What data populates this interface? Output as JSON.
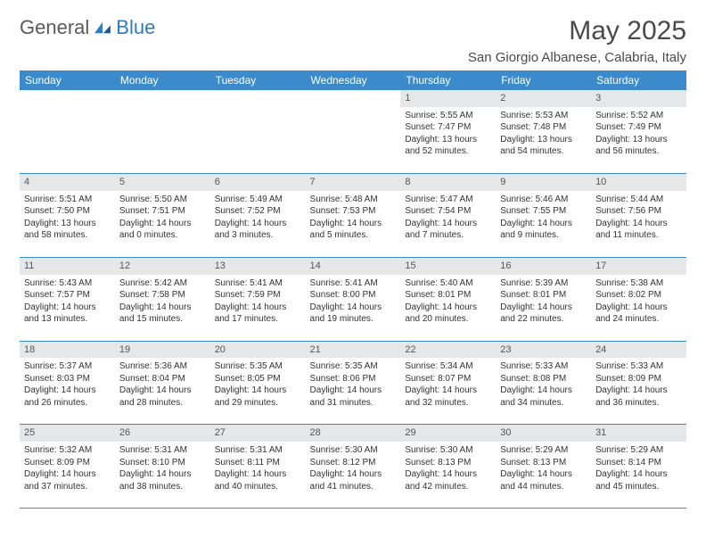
{
  "brand": {
    "name1": "General",
    "name2": "Blue",
    "logo_color": "#2d7bc0",
    "text_color": "#5a5a5a"
  },
  "title": "May 2025",
  "location": "San Giorgio Albanese, Calabria, Italy",
  "header_bg": "#3b8bcc",
  "header_text_color": "#ffffff",
  "daynum_bg": "#e5e7e9",
  "weekdays": [
    "Sunday",
    "Monday",
    "Tuesday",
    "Wednesday",
    "Thursday",
    "Friday",
    "Saturday"
  ],
  "weeks": [
    [
      null,
      null,
      null,
      null,
      {
        "d": "1",
        "r": "5:55 AM",
        "s": "7:47 PM",
        "dl": "13 hours and 52 minutes."
      },
      {
        "d": "2",
        "r": "5:53 AM",
        "s": "7:48 PM",
        "dl": "13 hours and 54 minutes."
      },
      {
        "d": "3",
        "r": "5:52 AM",
        "s": "7:49 PM",
        "dl": "13 hours and 56 minutes."
      }
    ],
    [
      {
        "d": "4",
        "r": "5:51 AM",
        "s": "7:50 PM",
        "dl": "13 hours and 58 minutes."
      },
      {
        "d": "5",
        "r": "5:50 AM",
        "s": "7:51 PM",
        "dl": "14 hours and 0 minutes."
      },
      {
        "d": "6",
        "r": "5:49 AM",
        "s": "7:52 PM",
        "dl": "14 hours and 3 minutes."
      },
      {
        "d": "7",
        "r": "5:48 AM",
        "s": "7:53 PM",
        "dl": "14 hours and 5 minutes."
      },
      {
        "d": "8",
        "r": "5:47 AM",
        "s": "7:54 PM",
        "dl": "14 hours and 7 minutes."
      },
      {
        "d": "9",
        "r": "5:46 AM",
        "s": "7:55 PM",
        "dl": "14 hours and 9 minutes."
      },
      {
        "d": "10",
        "r": "5:44 AM",
        "s": "7:56 PM",
        "dl": "14 hours and 11 minutes."
      }
    ],
    [
      {
        "d": "11",
        "r": "5:43 AM",
        "s": "7:57 PM",
        "dl": "14 hours and 13 minutes."
      },
      {
        "d": "12",
        "r": "5:42 AM",
        "s": "7:58 PM",
        "dl": "14 hours and 15 minutes."
      },
      {
        "d": "13",
        "r": "5:41 AM",
        "s": "7:59 PM",
        "dl": "14 hours and 17 minutes."
      },
      {
        "d": "14",
        "r": "5:41 AM",
        "s": "8:00 PM",
        "dl": "14 hours and 19 minutes."
      },
      {
        "d": "15",
        "r": "5:40 AM",
        "s": "8:01 PM",
        "dl": "14 hours and 20 minutes."
      },
      {
        "d": "16",
        "r": "5:39 AM",
        "s": "8:01 PM",
        "dl": "14 hours and 22 minutes."
      },
      {
        "d": "17",
        "r": "5:38 AM",
        "s": "8:02 PM",
        "dl": "14 hours and 24 minutes."
      }
    ],
    [
      {
        "d": "18",
        "r": "5:37 AM",
        "s": "8:03 PM",
        "dl": "14 hours and 26 minutes."
      },
      {
        "d": "19",
        "r": "5:36 AM",
        "s": "8:04 PM",
        "dl": "14 hours and 28 minutes."
      },
      {
        "d": "20",
        "r": "5:35 AM",
        "s": "8:05 PM",
        "dl": "14 hours and 29 minutes."
      },
      {
        "d": "21",
        "r": "5:35 AM",
        "s": "8:06 PM",
        "dl": "14 hours and 31 minutes."
      },
      {
        "d": "22",
        "r": "5:34 AM",
        "s": "8:07 PM",
        "dl": "14 hours and 32 minutes."
      },
      {
        "d": "23",
        "r": "5:33 AM",
        "s": "8:08 PM",
        "dl": "14 hours and 34 minutes."
      },
      {
        "d": "24",
        "r": "5:33 AM",
        "s": "8:09 PM",
        "dl": "14 hours and 36 minutes."
      }
    ],
    [
      {
        "d": "25",
        "r": "5:32 AM",
        "s": "8:09 PM",
        "dl": "14 hours and 37 minutes."
      },
      {
        "d": "26",
        "r": "5:31 AM",
        "s": "8:10 PM",
        "dl": "14 hours and 38 minutes."
      },
      {
        "d": "27",
        "r": "5:31 AM",
        "s": "8:11 PM",
        "dl": "14 hours and 40 minutes."
      },
      {
        "d": "28",
        "r": "5:30 AM",
        "s": "8:12 PM",
        "dl": "14 hours and 41 minutes."
      },
      {
        "d": "29",
        "r": "5:30 AM",
        "s": "8:13 PM",
        "dl": "14 hours and 42 minutes."
      },
      {
        "d": "30",
        "r": "5:29 AM",
        "s": "8:13 PM",
        "dl": "14 hours and 44 minutes."
      },
      {
        "d": "31",
        "r": "5:29 AM",
        "s": "8:14 PM",
        "dl": "14 hours and 45 minutes."
      }
    ]
  ],
  "labels": {
    "sunrise": "Sunrise:",
    "sunset": "Sunset:",
    "daylight": "Daylight:"
  }
}
